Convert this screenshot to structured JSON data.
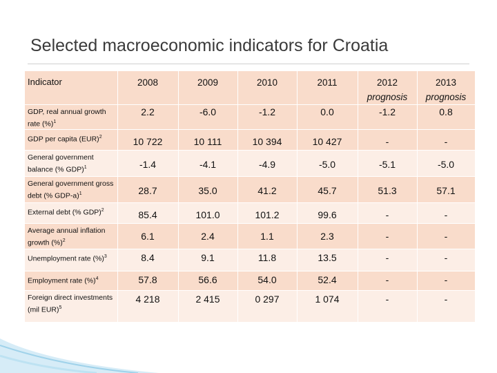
{
  "title": "Selected macroeconomic indicators for Croatia",
  "header": {
    "indicator": "Indicator",
    "years": [
      {
        "year": "2008",
        "sub": ""
      },
      {
        "year": "2009",
        "sub": ""
      },
      {
        "year": "2010",
        "sub": ""
      },
      {
        "year": "2011",
        "sub": ""
      },
      {
        "year": "2012",
        "sub": "prognosis"
      },
      {
        "year": "2013",
        "sub": "prognosis"
      }
    ]
  },
  "rows": [
    {
      "label": "GDP, real annual growth rate (%)",
      "sup": "1",
      "values": [
        "2.2",
        "-6.0",
        "-1.2",
        "0.0",
        "-1.2",
        "0.8"
      ]
    },
    {
      "label": "GDP per capita (EUR)",
      "sup": "2",
      "values": [
        "10 722",
        "10 111",
        "10 394",
        "10 427",
        "-",
        "-"
      ]
    },
    {
      "label": "General government balance (% GDP)",
      "sup": "1",
      "values": [
        "-1.4",
        "-4.1",
        "-4.9",
        "-5.0",
        "-5.1",
        "-5.0"
      ]
    },
    {
      "label": " General government gross debt (% GDP-a)",
      "sup": "1",
      "values": [
        "28.7",
        "35.0",
        "41.2",
        "45.7",
        "51.3",
        "57.1"
      ]
    },
    {
      "label": "External debt (% GDP)",
      "sup": "2",
      "values": [
        "85.4",
        "101.0",
        "101.2",
        "99.6",
        "-",
        "-"
      ]
    },
    {
      "label": "Average annual inflation growth (%)",
      "sup": "2",
      "values": [
        "6.1",
        "2.4",
        "1.1",
        "2.3",
        "-",
        "-"
      ]
    },
    {
      "label": "Unemployment rate (%)",
      "sup": "3",
      "values": [
        "8.4",
        "9.1",
        "11.8",
        "13.5",
        "-",
        "-"
      ]
    },
    {
      "label": "Employment rate (%)",
      "sup": "4",
      "values": [
        "57.8",
        "56.6",
        "54.0",
        "52.4",
        "-",
        "-"
      ]
    },
    {
      "label": "Foreign direct investments (mil EUR)",
      "sup": "5",
      "values": [
        "4 218",
        "2 415",
        "0 297",
        "1 074",
        "-",
        "-"
      ]
    }
  ]
}
